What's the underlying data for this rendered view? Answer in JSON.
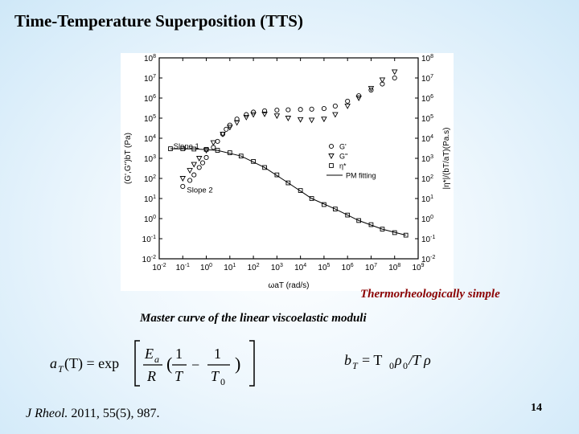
{
  "slide": {
    "title": "Time-Temperature Superposition (TTS)",
    "caption_simple": "Thermorheologically simple",
    "caption_master": "Master curve of the linear viscoelastic moduli",
    "citation_journal": "J Rheol.",
    "citation_rest": " 2011, 55(5), 987.",
    "page_number": "14"
  },
  "equations": {
    "aT": {
      "lhs_a": "a",
      "lhs_sub": "T",
      "lhs_arg": "(T) = exp",
      "num_E": "E",
      "num_sub": "a",
      "den_R": "R",
      "one": "1",
      "T": "T",
      "minus": "−",
      "T0": "T",
      "T0_sub": "0"
    },
    "bT": {
      "lhs": "b",
      "lhs_sub": "T",
      "eq": "= T",
      "sub0": "0",
      "rho": "ρ",
      "sub0b": "0",
      "rest": "/T ρ"
    }
  },
  "chart_data": {
    "type": "scatter",
    "xscale": "log",
    "yscale": "log",
    "xlim": [
      0.01,
      1000000000
    ],
    "ylim_left": [
      0.01,
      100000000
    ],
    "ylim_right": [
      0.01,
      100000000
    ],
    "x_tick_labels": [
      "10-2",
      "10-1",
      "100",
      "101",
      "102",
      "103",
      "104",
      "105",
      "106",
      "107",
      "108",
      "109"
    ],
    "y_tick_labels": [
      "10-2",
      "10-1",
      "100",
      "101",
      "102",
      "103",
      "104",
      "105",
      "106",
      "107",
      "108"
    ],
    "xlabel": "ωaT (rad/s)",
    "ylabel_left": "(G',G'')bT (Pa)",
    "ylabel_right": "|η*|/(bT/aT)(Pa.s)",
    "legend_position": "center-right",
    "legend": [
      {
        "marker": "circle",
        "label": "G'"
      },
      {
        "marker": "triangle-down",
        "label": "G''"
      },
      {
        "marker": "square",
        "label": "η*"
      },
      {
        "marker": "line",
        "label": "PM fitting"
      }
    ],
    "annotations": [
      {
        "text": "Slope 1",
        "x": 0.04,
        "y": 3000
      },
      {
        "text": "Slope 2",
        "x": 0.15,
        "y": 20
      }
    ],
    "series": [
      {
        "name": "G'",
        "marker": "circle",
        "x": [
          0.1,
          0.2,
          0.3,
          0.5,
          0.7,
          1,
          2,
          3,
          5,
          7,
          10,
          20,
          50,
          100,
          300,
          1000,
          3000,
          10000,
          30000,
          100000,
          300000,
          1000000,
          3000000,
          10000000,
          30000000,
          100000000
        ],
        "y": [
          40,
          80,
          150,
          350,
          600,
          1100,
          3500,
          7000,
          16000,
          28000,
          45000,
          90000,
          150000,
          200000,
          230000,
          250000,
          260000,
          270000,
          280000,
          300000,
          400000,
          700000,
          1300000,
          2500000,
          5000000,
          10000000
        ]
      },
      {
        "name": "G''",
        "marker": "triangle-down",
        "x": [
          0.1,
          0.2,
          0.3,
          0.5,
          1,
          2,
          5,
          10,
          20,
          50,
          100,
          300,
          1000,
          3000,
          10000,
          30000,
          100000,
          300000,
          1000000,
          3000000,
          10000000,
          30000000,
          100000000
        ],
        "y": [
          100,
          250,
          500,
          1000,
          2500,
          6000,
          16000,
          35000,
          60000,
          110000,
          150000,
          160000,
          130000,
          100000,
          85000,
          80000,
          90000,
          150000,
          400000,
          1000000,
          3000000,
          8000000,
          20000000
        ]
      },
      {
        "name": "η*",
        "marker": "square",
        "x": [
          0.03,
          0.1,
          0.3,
          1,
          3,
          10,
          30,
          100,
          300,
          1000,
          3000,
          10000,
          30000,
          100000,
          300000,
          1000000,
          3000000,
          10000000,
          30000000,
          100000000,
          300000000
        ],
        "y": [
          3000,
          3000,
          2900,
          2800,
          2500,
          1900,
          1300,
          700,
          350,
          150,
          60,
          25,
          10,
          5,
          3,
          1.5,
          0.8,
          0.5,
          0.3,
          0.2,
          0.15
        ]
      },
      {
        "name": "PM fitting",
        "marker": "line",
        "x": [
          0.03,
          0.3,
          3,
          30,
          300,
          3000,
          30000,
          300000,
          3000000,
          30000000,
          300000000
        ],
        "y": [
          3000,
          2950,
          2500,
          1300,
          350,
          60,
          10,
          3,
          0.8,
          0.3,
          0.15
        ]
      }
    ]
  }
}
